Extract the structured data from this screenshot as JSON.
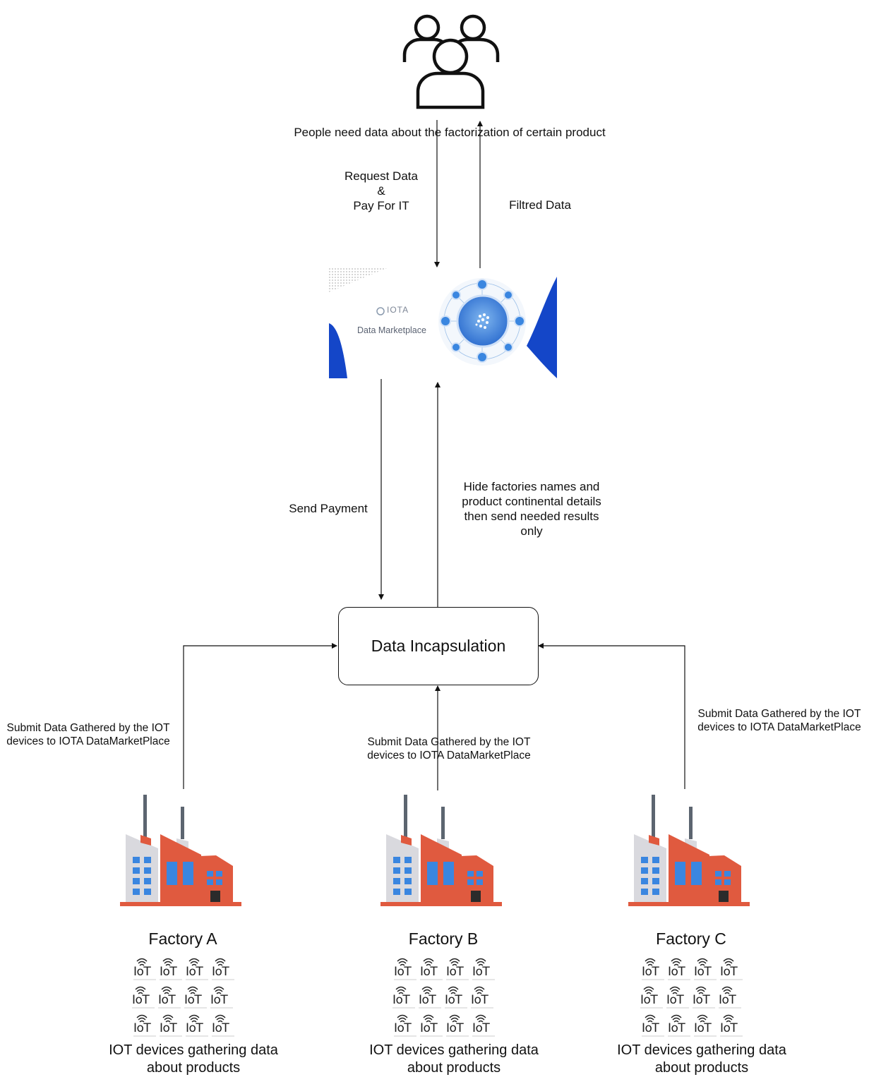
{
  "people": {
    "icon": "users-group-icon",
    "caption": "People need data about the factorization of certain product"
  },
  "flows": {
    "request_data": [
      "Request Data",
      "&",
      "Pay For IT"
    ],
    "filtred_data": "Filtred Data",
    "send_payment": "Send Payment",
    "hide_details": [
      "Hide factories  names and",
      "product continental details",
      "then send needed results",
      "only"
    ],
    "submit_label": [
      "Submit Data Gathered by the IOT",
      "devices to IOTA DataMarketPlace"
    ]
  },
  "marketplace": {
    "brand": "IOTA",
    "sub": "Data Marketplace",
    "colors": {
      "blue": "#1446c8",
      "node": "#3a86e0"
    }
  },
  "central_box": {
    "label": "Data Incapsulation"
  },
  "factories": [
    {
      "name": "Factory A",
      "caption": [
        "IOT devices gathering data",
        "about products"
      ]
    },
    {
      "name": "Factory B",
      "caption": [
        "IOT devices gathering data",
        "about products"
      ]
    },
    {
      "name": "Factory C",
      "caption": [
        "IOT devices gathering data",
        "about products"
      ]
    }
  ],
  "iot_chip_label": "IoT",
  "colors": {
    "factory_red": "#e05a3f",
    "factory_gray": "#d9d9de",
    "window_blue": "#3a86e0",
    "chimney": "#5c6570"
  }
}
